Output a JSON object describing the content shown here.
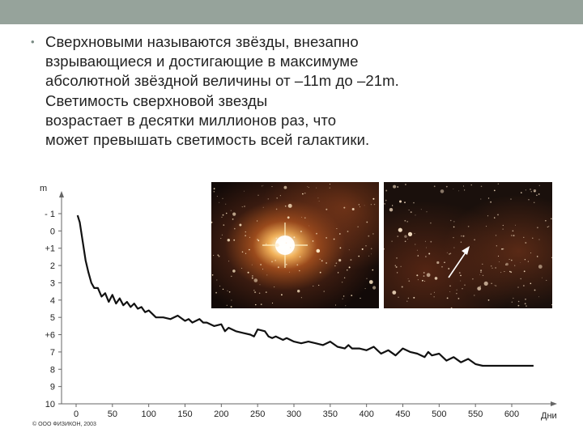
{
  "slide": {
    "bullet": "•",
    "paragraph_lines": [
      "Сверхновыми называются звёзды, внезапно",
      "взрывающиеся и достигающие в максимуме",
      "абсолютной звёздной величины от –11m до –21m.",
      "Светимость сверхновой звезды",
      "возрастает в десятки миллионов раз, что",
      "может превышать светимость всей галактики."
    ]
  },
  "photos": {
    "left": {
      "subject": "supernova-bright-star-photo"
    },
    "right": {
      "subject": "supernova-faded-star-photo-with-arrow"
    }
  },
  "colors": {
    "topbar": "#96a39b",
    "text": "#222222",
    "curve": "#111111"
  },
  "chart_data": {
    "type": "line",
    "ylabel": "m",
    "xlabel": "Дни",
    "copyright": "© ООО ФИЗИКОН, 2003",
    "y_inverted": true,
    "xlim": [
      0,
      650
    ],
    "ylim": [
      -1.6,
      10
    ],
    "x_ticks": [
      0,
      50,
      100,
      150,
      200,
      250,
      300,
      350,
      400,
      450,
      500,
      550,
      600
    ],
    "x_tick_labels": [
      "0",
      "50",
      "100",
      "150",
      "200",
      "250",
      "300",
      "350",
      "400",
      "450",
      "500",
      "550",
      "600"
    ],
    "y_ticks": [
      -1,
      0,
      1,
      2,
      3,
      4,
      5,
      6,
      7,
      8,
      9,
      10
    ],
    "y_tick_labels": [
      "- 1",
      "0",
      "+1",
      "2",
      "3",
      "4",
      "5",
      "+6",
      "7",
      "8",
      "9",
      "10"
    ],
    "series": [
      {
        "x": [
          2,
          5,
          9,
          13,
          17,
          21,
          25,
          30,
          35,
          40,
          45,
          50,
          55,
          60,
          65,
          70,
          75,
          80,
          85,
          90,
          95,
          100,
          110,
          120,
          130,
          140,
          150,
          155,
          160,
          170,
          175,
          180,
          190,
          200,
          205,
          210,
          220,
          230,
          240,
          245,
          250,
          260,
          265,
          270,
          275,
          285,
          290,
          300,
          310,
          320,
          330,
          340,
          350,
          360,
          370,
          375,
          380,
          390,
          400,
          410,
          415,
          420,
          430,
          440,
          450,
          460,
          470,
          480,
          485,
          490,
          500,
          510,
          520,
          530,
          540,
          550,
          560,
          580,
          600,
          610,
          620,
          630
        ],
        "y": [
          -0.9,
          -0.5,
          0.6,
          1.7,
          2.4,
          3.0,
          3.3,
          3.3,
          3.8,
          3.6,
          4.1,
          3.7,
          4.2,
          3.9,
          4.3,
          4.1,
          4.4,
          4.2,
          4.5,
          4.4,
          4.7,
          4.6,
          5.0,
          5.0,
          5.1,
          4.9,
          5.2,
          5.1,
          5.3,
          5.1,
          5.3,
          5.3,
          5.5,
          5.4,
          5.8,
          5.6,
          5.8,
          5.9,
          6.0,
          6.1,
          5.7,
          5.8,
          6.1,
          6.2,
          6.1,
          6.3,
          6.2,
          6.4,
          6.5,
          6.4,
          6.5,
          6.6,
          6.4,
          6.7,
          6.8,
          6.6,
          6.8,
          6.8,
          6.9,
          6.7,
          6.9,
          7.1,
          6.9,
          7.2,
          6.8,
          7.0,
          7.1,
          7.3,
          7.0,
          7.2,
          7.1,
          7.5,
          7.3,
          7.6,
          7.4,
          7.7,
          7.8,
          7.8,
          7.8,
          7.8,
          7.8,
          7.8
        ]
      }
    ]
  }
}
